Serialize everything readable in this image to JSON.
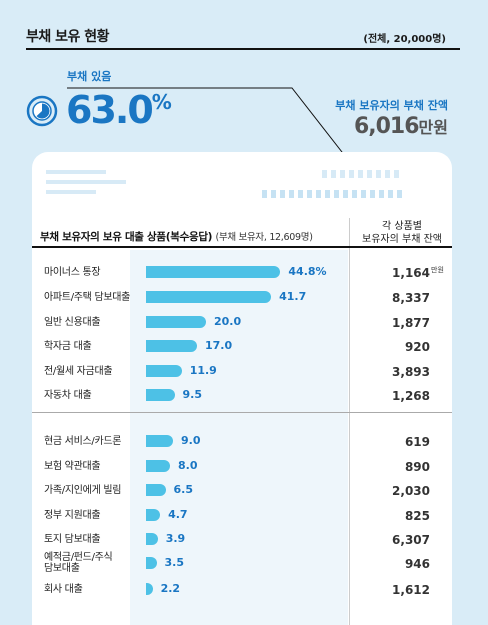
{
  "header": {
    "title": "부채 보유 현황",
    "total": "(전체, 20,000명)"
  },
  "summary": {
    "has_debt_label": "부채 있음",
    "has_debt_value": "63.0",
    "has_debt_unit": "%",
    "has_debt_fraction": 0.63,
    "balance_label": "부채 보유자의 부채 잔액",
    "balance_value": "6,016",
    "balance_unit": "만원"
  },
  "table_header": {
    "left_title": "부채 보유자의 보유 대출 상품(복수응답)",
    "left_sub": "(부채 보유자, 12,609명)",
    "right_line1": "각 상품별",
    "right_line2": "보유자의 부채 잔액",
    "balance_unit": "만원"
  },
  "colors": {
    "accent": "#1a76c3",
    "bar": "#4dc1e6",
    "background": "#d9ecf7"
  },
  "chart_data": {
    "type": "bar",
    "orientation": "horizontal",
    "title": "부채 보유자의 보유 대출 상품(복수응답)",
    "categories": [
      "마이너스 통장",
      "아파트/주택 담보대출",
      "일반 신용대출",
      "학자금 대출",
      "전/월세 자금대출",
      "자동차 대출",
      "현금 서비스/카드론",
      "보험 약관대출",
      "가족/지인에게 빌림",
      "정부 지원대출",
      "토지 담보대출",
      "예적금/펀드/주식 담보대출",
      "회사 대출"
    ],
    "values": [
      44.8,
      41.7,
      20.0,
      17.0,
      11.9,
      9.5,
      9.0,
      8.0,
      6.5,
      4.7,
      3.9,
      3.5,
      2.2
    ],
    "value_labels": [
      "44.8%",
      "41.7",
      "20.0",
      "17.0",
      "11.9",
      "9.5",
      "9.0",
      "8.0",
      "6.5",
      "4.7",
      "3.9",
      "3.5",
      "2.2"
    ],
    "balances": [
      "1,164",
      "8,337",
      "1,877",
      "920",
      "3,893",
      "1,268",
      "619",
      "890",
      "2,030",
      "825",
      "6,307",
      "946",
      "1,612"
    ],
    "xlim": [
      0,
      50
    ],
    "grid": false
  }
}
